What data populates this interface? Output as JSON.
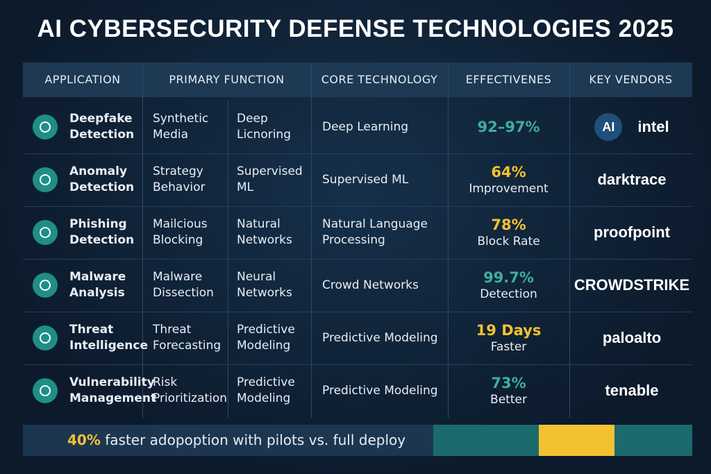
{
  "title": "AI CYBERSECURITY DEFENSE TECHNOLOGIES 2025",
  "table": {
    "headers": [
      "APPLICATION",
      "PRIMARY FUNCTION",
      "CORE TECHNOLOGY",
      "EFFECTIVENES",
      "KEY VENDORS"
    ],
    "rows": [
      {
        "application": [
          "Deepfake",
          "Detection"
        ],
        "function": [
          [
            "Synthetic",
            "Media"
          ],
          [
            "Deep",
            "Licnoring"
          ]
        ],
        "core": [
          "Deep Learning"
        ],
        "metric": "92–97%",
        "note": null,
        "color": "#3fae9c",
        "vendors": [
          "AI",
          "intel"
        ]
      },
      {
        "application": [
          "Anomaly",
          "Detection"
        ],
        "function": [
          [
            "Strategy",
            "Behavior"
          ],
          [
            "Supervised",
            "ML"
          ]
        ],
        "core": [
          "Supervised ML"
        ],
        "metric": "64%",
        "note": "Improvement",
        "color": "#f2c230",
        "vendors": [
          "darktrace"
        ]
      },
      {
        "application": [
          "Phishing",
          "Detection"
        ],
        "function": [
          [
            "Mailcious",
            "Blocking"
          ],
          [
            "Natural",
            "Networks"
          ]
        ],
        "core": [
          "Natural Language",
          "Processing"
        ],
        "metric": "78%",
        "note": "Block Rate",
        "color": "#f2c230",
        "vendors": [
          "proofpoint"
        ]
      },
      {
        "application": [
          "Malware",
          "Analysis"
        ],
        "function": [
          [
            "Malware",
            "Dissection"
          ],
          [
            "Neural",
            "Networks"
          ]
        ],
        "core": [
          "Crowd Networks"
        ],
        "metric": "99.7%",
        "note": "Detection",
        "color": "#3fae9c",
        "vendors": [
          "CROWDSTRIKE"
        ]
      },
      {
        "application": [
          "Threat",
          "Intelligence"
        ],
        "function": [
          [
            "Threat",
            "Forecasting"
          ],
          [
            "Predictive",
            "Modeling"
          ]
        ],
        "core": [
          "Predictive Modeling"
        ],
        "metric": "19 Days",
        "note": "Faster",
        "color": "#f2c230",
        "vendors": [
          "paloalto"
        ]
      },
      {
        "application": [
          "Vulnerability",
          "Management"
        ],
        "function": [
          [
            "Risk",
            "Prioritization"
          ],
          [
            "Predictive",
            "Modeling"
          ]
        ],
        "core": [
          "Predictive Modeling"
        ],
        "metric": "73%",
        "note": "Better",
        "color": "#3fae9c",
        "vendors": [
          "tenable"
        ]
      }
    ]
  },
  "footer": {
    "highlight": "40%",
    "text": " faster adopoption with pilots vs. full deploy"
  }
}
